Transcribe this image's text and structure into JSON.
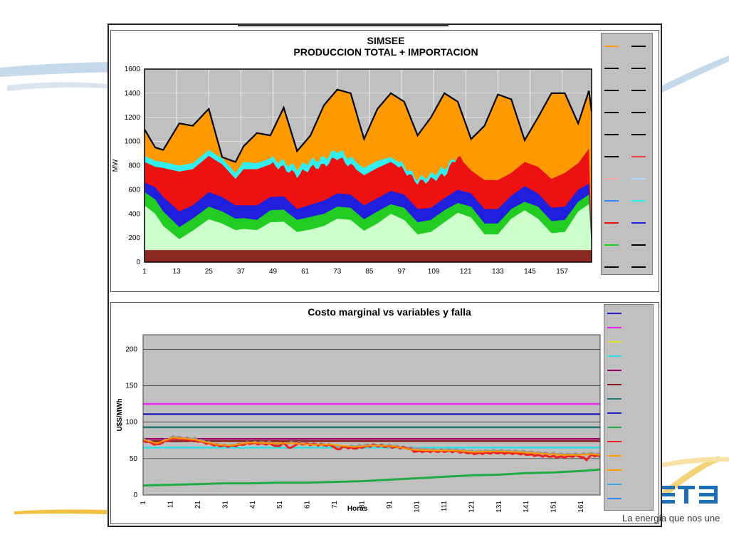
{
  "brand": {
    "slogan": "La energía que nos une",
    "logo_text": "UTE",
    "accent": "#1e6fb5"
  },
  "chart_data": [
    {
      "type": "area",
      "title": "SIMSEE",
      "subtitle": "PRODUCCION TOTAL + IMPORTACION",
      "ylabel": "MW",
      "xlabel": "",
      "ylim": [
        0,
        1600
      ],
      "yticks": [
        0,
        200,
        400,
        600,
        800,
        1000,
        1200,
        1400,
        1600
      ],
      "xticks": [
        1,
        13,
        25,
        37,
        49,
        61,
        73,
        85,
        97,
        109,
        121,
        133,
        145,
        157
      ],
      "xrange": [
        1,
        168
      ],
      "grid": true,
      "legend": "right",
      "stack_colors": [
        "#8b2a20",
        "#ccffcc",
        "#22cc22",
        "#1f1fdd",
        "#ee1111",
        "#33eeee",
        "#ff9900"
      ],
      "anchors": {
        "x": [
          1,
          5,
          8,
          14,
          19,
          25,
          30,
          35,
          38,
          43,
          48,
          53,
          58,
          63,
          68,
          73,
          78,
          83,
          88,
          93,
          98,
          103,
          108,
          113,
          118,
          123,
          128,
          133,
          138,
          143,
          148,
          153,
          158,
          163,
          167,
          168
        ],
        "base": [
          100,
          100,
          100,
          100,
          100,
          100,
          100,
          100,
          100,
          100,
          100,
          100,
          100,
          100,
          100,
          100,
          100,
          100,
          100,
          100,
          100,
          100,
          100,
          100,
          100,
          100,
          100,
          100,
          100,
          100,
          100,
          100,
          100,
          100,
          100,
          100
        ],
        "light": [
          470,
          400,
          300,
          190,
          260,
          355,
          320,
          265,
          275,
          265,
          330,
          335,
          250,
          270,
          300,
          360,
          350,
          260,
          320,
          400,
          350,
          230,
          250,
          330,
          410,
          370,
          230,
          230,
          360,
          430,
          360,
          240,
          250,
          420,
          480,
          120
        ],
        "green": [
          580,
          520,
          420,
          290,
          360,
          460,
          420,
          360,
          365,
          350,
          430,
          435,
          350,
          375,
          400,
          460,
          450,
          355,
          420,
          480,
          450,
          330,
          350,
          430,
          490,
          460,
          320,
          320,
          440,
          500,
          460,
          340,
          350,
          500,
          560,
          140
        ],
        "blue": [
          660,
          620,
          540,
          420,
          470,
          580,
          540,
          470,
          470,
          470,
          540,
          545,
          440,
          475,
          510,
          570,
          560,
          470,
          530,
          590,
          560,
          440,
          450,
          530,
          600,
          570,
          440,
          440,
          550,
          630,
          570,
          450,
          460,
          600,
          650,
          160
        ],
        "red": [
          830,
          790,
          780,
          750,
          770,
          880,
          810,
          690,
          770,
          770,
          810,
          780,
          720,
          780,
          800,
          870,
          800,
          720,
          780,
          830,
          760,
          660,
          680,
          720,
          880,
          760,
          680,
          680,
          740,
          830,
          790,
          690,
          740,
          820,
          940,
          180
        ],
        "cyan": [
          880,
          840,
          830,
          800,
          820,
          930,
          860,
          740,
          830,
          820,
          860,
          830,
          780,
          840,
          860,
          930,
          860,
          780,
          840,
          870,
          800,
          690,
          720,
          780,
          880,
          760,
          680,
          680,
          740,
          830,
          790,
          690,
          740,
          820,
          940,
          180
        ],
        "total": [
          1100,
          950,
          930,
          1150,
          1130,
          1270,
          870,
          830,
          960,
          1070,
          1050,
          1280,
          920,
          1050,
          1300,
          1430,
          1400,
          1020,
          1270,
          1400,
          1330,
          1050,
          1200,
          1400,
          1330,
          1020,
          1130,
          1390,
          1350,
          1010,
          1200,
          1400,
          1400,
          1150,
          1420,
          1250
        ]
      }
    },
    {
      "type": "line",
      "title": "Costo marginal  vs variables y falla",
      "ylabel": "U$S/MWh",
      "xlabel": "Horas",
      "ylim": [
        0,
        220
      ],
      "yticks": [
        0,
        50,
        100,
        150,
        200
      ],
      "xticks": [
        1,
        11,
        21,
        31,
        41,
        51,
        61,
        71,
        81,
        91,
        101,
        111,
        121,
        131,
        141,
        151,
        161
      ],
      "xrange": [
        1,
        168
      ],
      "grid": true,
      "legend": "right",
      "series": [
        {
          "color": "#ee22ee",
          "width": 2.5,
          "flat": 125
        },
        {
          "color": "#2222bb",
          "width": 2.5,
          "flat": 111
        },
        {
          "color": "#227777",
          "width": 2.5,
          "flat": 93
        },
        {
          "color": "#990066",
          "width": 2.5,
          "flat": 77
        },
        {
          "color": "#8b1a1a",
          "width": 2.5,
          "flat": 74
        },
        {
          "color": "#33dddd",
          "width": 2.5,
          "flat": 65
        },
        {
          "color": "#22aa44",
          "width": 3,
          "x": [
            1,
            11,
            21,
            31,
            41,
            51,
            61,
            71,
            81,
            91,
            101,
            111,
            121,
            131,
            141,
            151,
            161,
            168
          ],
          "values": [
            13,
            14,
            15,
            16,
            16,
            17,
            17,
            18,
            19,
            21,
            23,
            25,
            27,
            28,
            30,
            31,
            33,
            35
          ]
        },
        {
          "color": "#999999",
          "width": 3,
          "x": [
            1,
            6,
            12,
            20,
            28,
            33,
            40,
            48,
            50,
            55,
            60,
            65,
            70,
            73,
            78,
            85,
            92,
            100,
            108,
            115,
            122,
            130,
            138,
            146,
            154,
            160,
            165,
            168
          ],
          "values": [
            77,
            70,
            80,
            77,
            69,
            68,
            72,
            72,
            69,
            72,
            71,
            70,
            68,
            66,
            67,
            69,
            68,
            64,
            62,
            62,
            60,
            61,
            60,
            58,
            56,
            56,
            57,
            56
          ]
        },
        {
          "color": "#ee2222",
          "width": 3,
          "x": [
            1,
            6,
            12,
            20,
            28,
            33,
            40,
            48,
            50,
            52,
            55,
            57,
            60,
            65,
            70,
            72,
            74,
            78,
            85,
            92,
            98,
            100,
            108,
            115,
            122,
            130,
            138,
            146,
            154,
            160,
            163,
            165,
            168
          ],
          "values": [
            75,
            69,
            78,
            75,
            68,
            67,
            71,
            70,
            66,
            71,
            64,
            70,
            70,
            69,
            68,
            62,
            66,
            64,
            68,
            66,
            64,
            60,
            60,
            60,
            57,
            58,
            57,
            54,
            52,
            54,
            49,
            55,
            53
          ]
        },
        {
          "color": "#ff9900",
          "width": 2,
          "x": [
            1,
            6,
            12,
            20,
            28,
            33,
            40,
            48,
            55,
            60,
            65,
            70,
            78,
            85,
            92,
            100,
            108,
            115,
            122,
            130,
            138,
            146,
            154,
            160,
            165,
            168
          ],
          "values": [
            76,
            71,
            79,
            76,
            69,
            68,
            72,
            71,
            71,
            70,
            69,
            69,
            66,
            68,
            67,
            62,
            61,
            61,
            59,
            60,
            59,
            57,
            55,
            55,
            56,
            55
          ]
        }
      ]
    }
  ]
}
